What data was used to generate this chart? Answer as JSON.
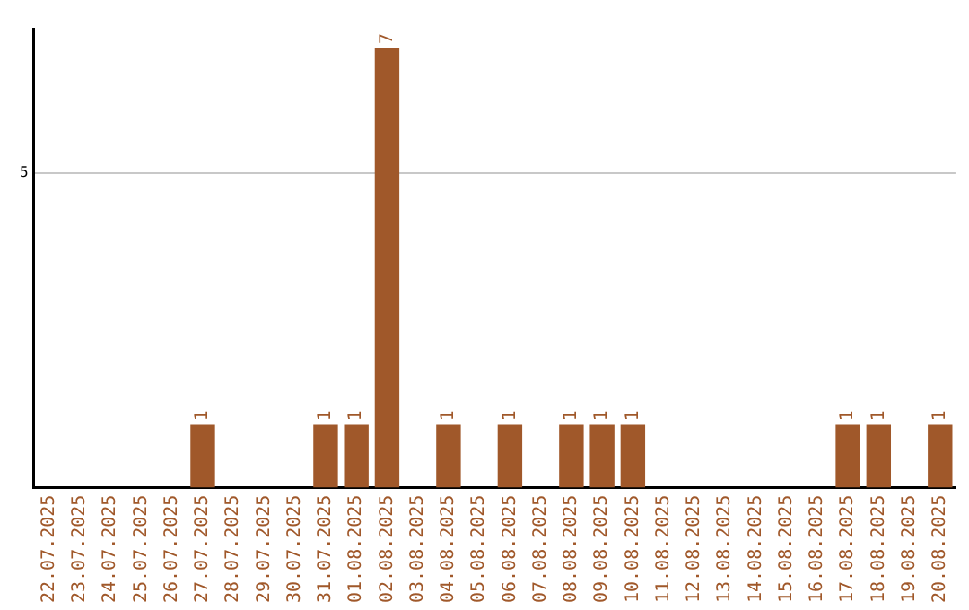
{
  "chart_data": {
    "type": "bar",
    "categories": [
      "22.07.2025",
      "23.07.2025",
      "24.07.2025",
      "25.07.2025",
      "26.07.2025",
      "27.07.2025",
      "28.07.2025",
      "29.07.2025",
      "30.07.2025",
      "31.07.2025",
      "01.08.2025",
      "02.08.2025",
      "03.08.2025",
      "04.08.2025",
      "05.08.2025",
      "06.08.2025",
      "07.08.2025",
      "08.08.2025",
      "09.08.2025",
      "10.08.2025",
      "11.08.2025",
      "12.08.2025",
      "13.08.2025",
      "14.08.2025",
      "15.08.2025",
      "16.08.2025",
      "17.08.2025",
      "18.08.2025",
      "19.08.2025",
      "20.08.2025"
    ],
    "values": [
      0,
      0,
      0,
      0,
      0,
      1,
      0,
      0,
      0,
      1,
      1,
      7,
      0,
      1,
      0,
      1,
      0,
      1,
      1,
      1,
      0,
      0,
      0,
      0,
      0,
      0,
      1,
      1,
      0,
      1
    ],
    "value_labels": [
      null,
      null,
      null,
      null,
      null,
      "1",
      null,
      null,
      null,
      "1",
      "1",
      "7",
      null,
      "1",
      null,
      "1",
      null,
      "1",
      "1",
      "1",
      null,
      null,
      null,
      null,
      null,
      null,
      "1",
      "1",
      null,
      "1"
    ],
    "color": "#a0582a",
    "ylim": [
      0,
      7.3
    ],
    "yticks": [
      5
    ],
    "grid": "y",
    "legend": false
  }
}
